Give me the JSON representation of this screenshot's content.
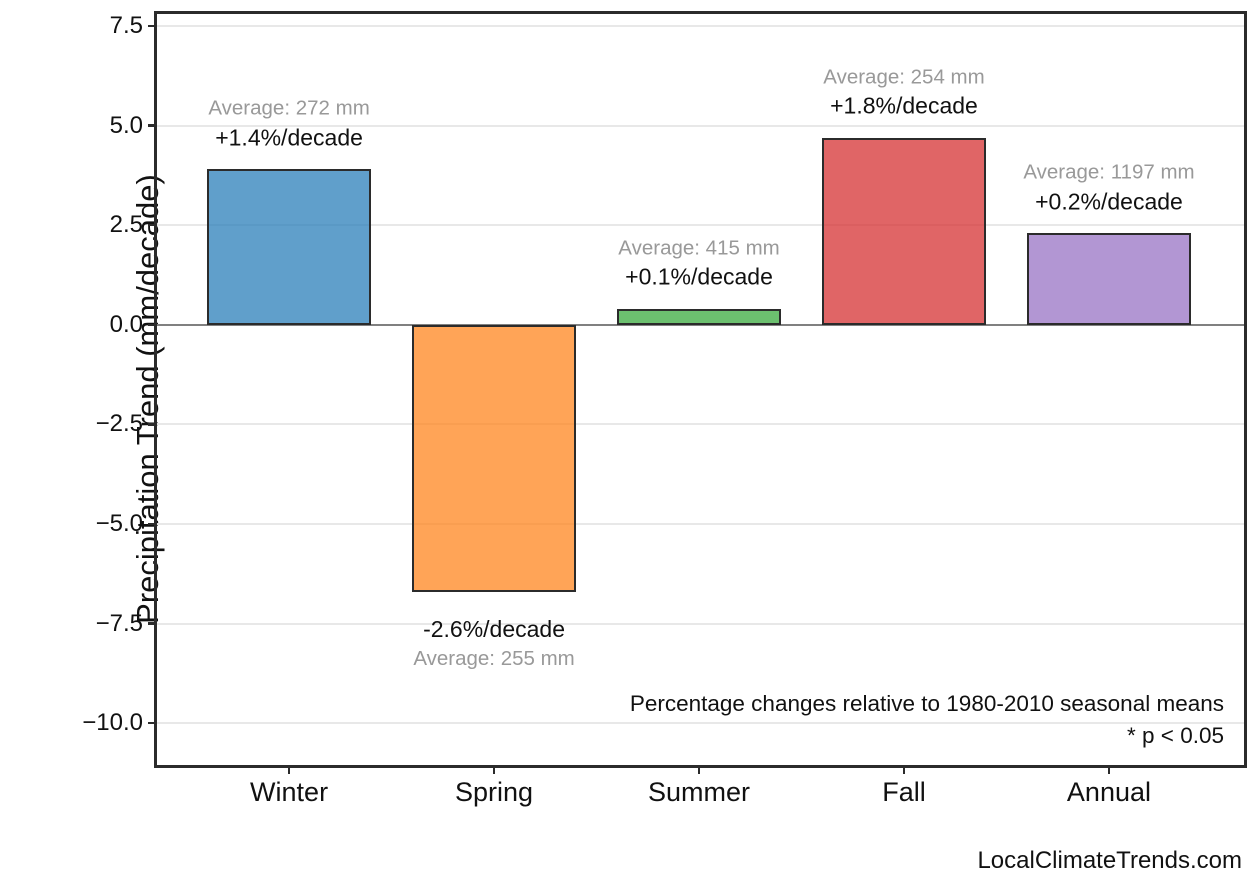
{
  "chart_data": {
    "type": "bar",
    "title": "",
    "xlabel": "",
    "ylabel": "Precipitation Trend (mm/decade)",
    "categories": [
      "Winter",
      "Spring",
      "Summer",
      "Fall",
      "Annual"
    ],
    "values": [
      3.9,
      -6.7,
      0.4,
      4.7,
      2.3
    ],
    "bar_details": [
      {
        "category": "Winter",
        "value_mm_per_decade": 3.9,
        "percent_label": "+1.4%/decade",
        "average_label": "Average: 272 mm",
        "color": "#2b7fba",
        "annotation_position": "above"
      },
      {
        "category": "Spring",
        "value_mm_per_decade": -6.7,
        "percent_label": "-2.6%/decade",
        "average_label": "Average: 255 mm",
        "color": "#ff861f",
        "annotation_position": "below"
      },
      {
        "category": "Summer",
        "value_mm_per_decade": 0.4,
        "percent_label": "+0.1%/decade",
        "average_label": "Average: 415 mm",
        "color": "#3bab3f",
        "annotation_position": "above"
      },
      {
        "category": "Fall",
        "value_mm_per_decade": 4.7,
        "percent_label": "+1.8%/decade",
        "average_label": "Average: 254 mm",
        "color": "#d63233",
        "annotation_position": "above"
      },
      {
        "category": "Annual",
        "value_mm_per_decade": 2.3,
        "percent_label": "+0.2%/decade",
        "average_label": "Average: 1197 mm",
        "color": "#9873c4",
        "annotation_position": "above"
      }
    ],
    "bar_alpha": 0.75,
    "y_ticks": [
      {
        "value": 7.5,
        "label": "7.5"
      },
      {
        "value": 5.0,
        "label": "5.0"
      },
      {
        "value": 2.5,
        "label": "2.5"
      },
      {
        "value": 0.0,
        "label": "0.0"
      },
      {
        "value": -2.5,
        "label": "−2.5"
      },
      {
        "value": -5.0,
        "label": "−5.0"
      },
      {
        "value": -7.5,
        "label": "−7.5"
      },
      {
        "value": -10.0,
        "label": "−10.0"
      }
    ],
    "ylim": [
      -11.05,
      7.8
    ],
    "grid": "horizontal",
    "zero_line": true,
    "legend": "none",
    "notes": [
      "Percentage changes relative to 1980-2010 seasonal means",
      "* p < 0.05"
    ],
    "watermark": "LocalClimateTrends.com",
    "colors": {
      "frame": "#2b2b2b",
      "gridline": "#e8e8e8",
      "zero_line": "#808080",
      "average_text": "#999999",
      "percent_text": "#111111"
    }
  }
}
